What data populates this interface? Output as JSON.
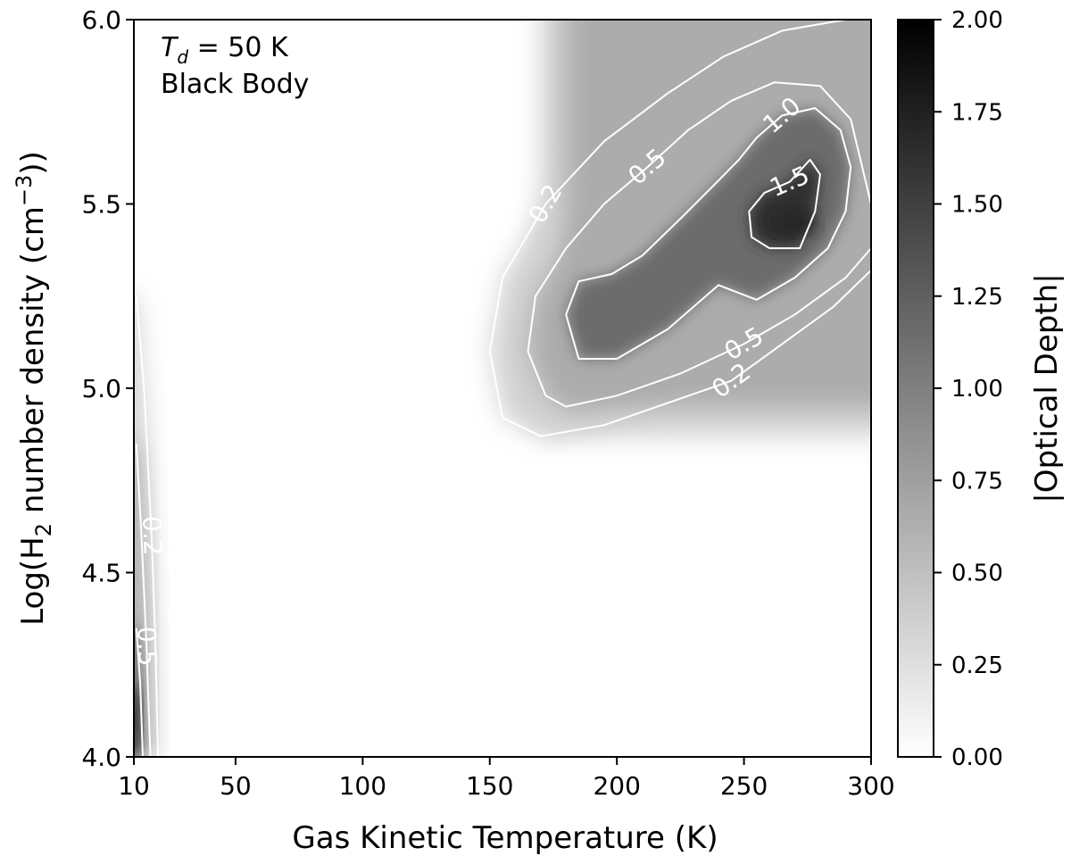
{
  "chart_data": {
    "type": "heatmap",
    "title": "",
    "annotation": {
      "line1_symbol": "T",
      "line1_subscript": "d",
      "line1_rest": " = 50 K",
      "line2": "Black Body"
    },
    "xlabel": "Gas Kinetic Temperature (K)",
    "ylabel": {
      "prefix": "Log(H",
      "subscript": "2",
      "middle": " number density (cm",
      "superscript": "−3",
      "suffix": "))"
    },
    "colorbar_label": "|Optical Depth|",
    "xlim": [
      10,
      300
    ],
    "ylim": [
      4.0,
      6.0
    ],
    "clim": [
      0.0,
      2.0
    ],
    "colormap": "Greys",
    "colormap_colors": [
      "#ffffff",
      "#000000"
    ],
    "contour_color": "#ffffff",
    "x_ticks": [
      10,
      50,
      100,
      150,
      200,
      250,
      300
    ],
    "x_tick_labels": [
      "10",
      "50",
      "100",
      "150",
      "200",
      "250",
      "300"
    ],
    "y_ticks": [
      4.0,
      4.5,
      5.0,
      5.5,
      6.0
    ],
    "y_tick_labels": [
      "4.0",
      "4.5",
      "5.0",
      "5.5",
      "6.0"
    ],
    "colorbar_ticks": [
      0.0,
      0.25,
      0.5,
      0.75,
      1.0,
      1.25,
      1.5,
      1.75,
      2.0
    ],
    "colorbar_tick_labels": [
      "0.00",
      "0.25",
      "0.50",
      "0.75",
      "1.00",
      "1.25",
      "1.50",
      "1.75",
      "2.00"
    ],
    "peak_regions": [
      {
        "name": "low-temperature band",
        "x_center": 10,
        "y_center": 4.1,
        "peak_value": 1.6
      },
      {
        "name": "high-temperature ridge",
        "x_center": 270,
        "y_center": 5.45,
        "peak_value": 1.7
      }
    ],
    "contours": [
      {
        "level": 0.2,
        "label": "0.2",
        "segments": [
          [
            [
              170,
              4.87
            ],
            [
              195,
              4.9
            ],
            [
              220,
              4.96
            ],
            [
              245,
              5.02
            ],
            [
              265,
              5.12
            ],
            [
              285,
              5.22
            ],
            [
              300,
              5.32
            ]
          ],
          [
            [
              290,
              6.0
            ],
            [
              265,
              5.97
            ],
            [
              242,
              5.9
            ],
            [
              220,
              5.8
            ],
            [
              195,
              5.67
            ],
            [
              172,
              5.5
            ],
            [
              155,
              5.3
            ],
            [
              150,
              5.1
            ],
            [
              155,
              4.92
            ],
            [
              170,
              4.87
            ]
          ],
          [
            [
              11,
              5.25
            ],
            [
              14,
              5.0
            ],
            [
              17,
              4.6
            ],
            [
              18.5,
              4.3
            ],
            [
              19.5,
              4.0
            ]
          ]
        ]
      },
      {
        "level": 0.5,
        "label": "0.5",
        "segments": [
          [
            [
              180,
              4.95
            ],
            [
              200,
              4.98
            ],
            [
              225,
              5.04
            ],
            [
              250,
              5.12
            ],
            [
              270,
              5.2
            ],
            [
              290,
              5.3
            ],
            [
              300,
              5.38
            ]
          ],
          [
            [
              300,
              5.5
            ],
            [
              292,
              5.73
            ],
            [
              280,
              5.82
            ],
            [
              262,
              5.83
            ],
            [
              245,
              5.78
            ],
            [
              228,
              5.7
            ],
            [
              212,
              5.6
            ],
            [
              195,
              5.5
            ],
            [
              180,
              5.38
            ],
            [
              168,
              5.25
            ],
            [
              165,
              5.1
            ],
            [
              172,
              4.98
            ],
            [
              180,
              4.95
            ]
          ],
          [
            [
              11,
              4.85
            ],
            [
              13,
              4.6
            ],
            [
              15,
              4.3
            ],
            [
              16.5,
              4.0
            ]
          ]
        ]
      },
      {
        "level": 1.0,
        "label": "1.0",
        "segments": [
          [
            [
              200,
              5.08
            ],
            [
              220,
              5.16
            ],
            [
              240,
              5.28
            ],
            [
              255,
              5.24
            ],
            [
              270,
              5.3
            ],
            [
              283,
              5.38
            ],
            [
              290,
              5.48
            ],
            [
              292,
              5.6
            ],
            [
              288,
              5.7
            ],
            [
              278,
              5.76
            ],
            [
              265,
              5.74
            ],
            [
              255,
              5.68
            ],
            [
              248,
              5.62
            ],
            [
              238,
              5.55
            ],
            [
              225,
              5.46
            ],
            [
              210,
              5.36
            ],
            [
              198,
              5.31
            ],
            [
              185,
              5.29
            ],
            [
              180,
              5.2
            ],
            [
              185,
              5.08
            ],
            [
              200,
              5.08
            ]
          ],
          [
            [
              11,
              4.35
            ],
            [
              12.5,
              4.2
            ],
            [
              13.5,
              4.0
            ]
          ]
        ]
      },
      {
        "level": 1.5,
        "label": "1.5",
        "segments": [
          [
            [
              260,
              5.38
            ],
            [
              272,
              5.38
            ],
            [
              278,
              5.48
            ],
            [
              280,
              5.58
            ],
            [
              276,
              5.62
            ],
            [
              268,
              5.56
            ],
            [
              258,
              5.53
            ],
            [
              252,
              5.48
            ],
            [
              253,
              5.41
            ],
            [
              260,
              5.38
            ]
          ]
        ]
      }
    ]
  }
}
